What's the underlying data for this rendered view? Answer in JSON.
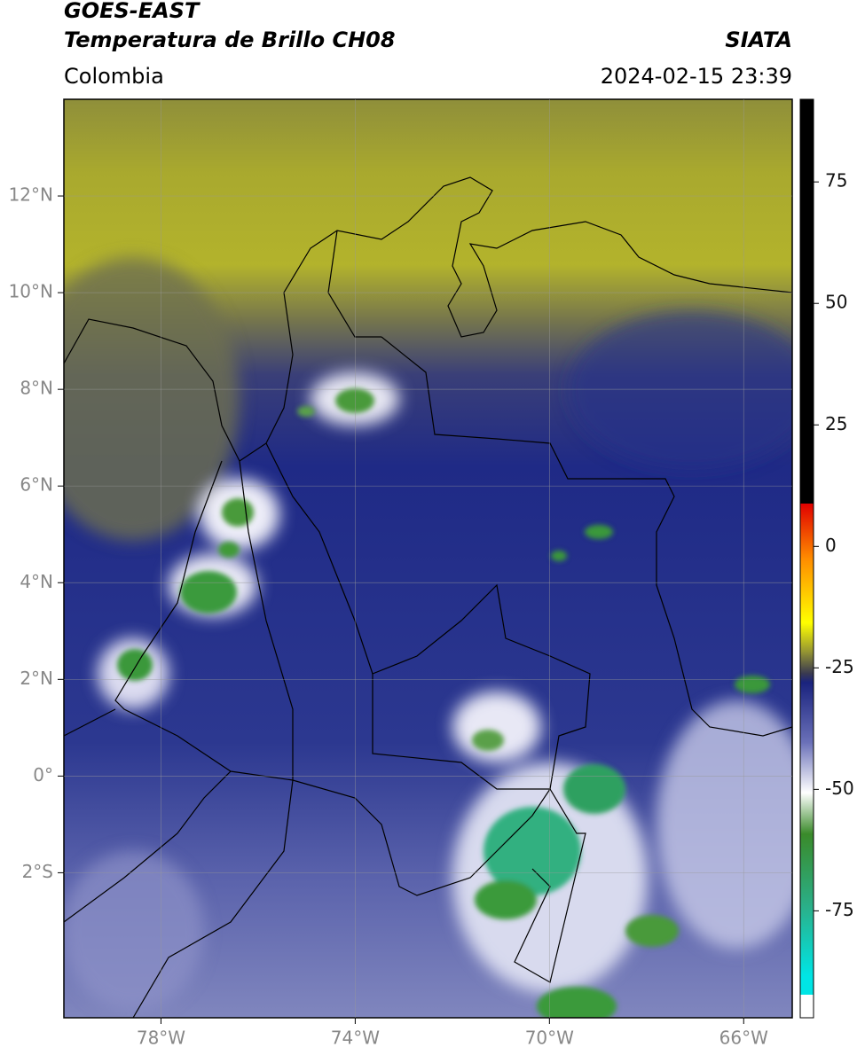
{
  "header": {
    "title": "GOES-EAST",
    "subtitle": "Temperatura de Brillo CH08",
    "source": "SIATA",
    "region": "Colombia",
    "datetime": "2024-02-15 23:39"
  },
  "map": {
    "xlim": [
      -80,
      -65
    ],
    "ylim": [
      -5,
      14
    ],
    "xticks": [
      {
        "value": -78,
        "label": "78°W"
      },
      {
        "value": -74,
        "label": "74°W"
      },
      {
        "value": -70,
        "label": "70°W"
      },
      {
        "value": -66,
        "label": "66°W"
      }
    ],
    "yticks": [
      {
        "value": 12,
        "label": "12°N"
      },
      {
        "value": 10,
        "label": "10°N"
      },
      {
        "value": 8,
        "label": "8°N"
      },
      {
        "value": 6,
        "label": "6°N"
      },
      {
        "value": 4,
        "label": "4°N"
      },
      {
        "value": 2,
        "label": "2°N"
      },
      {
        "value": 0,
        "label": "0°"
      },
      {
        "value": -2,
        "label": "2°S"
      }
    ],
    "grid": true
  },
  "colorbar": {
    "clim": [
      -97,
      92
    ],
    "ticks": [
      75,
      50,
      25,
      0,
      -25,
      -50,
      -75
    ]
  }
}
